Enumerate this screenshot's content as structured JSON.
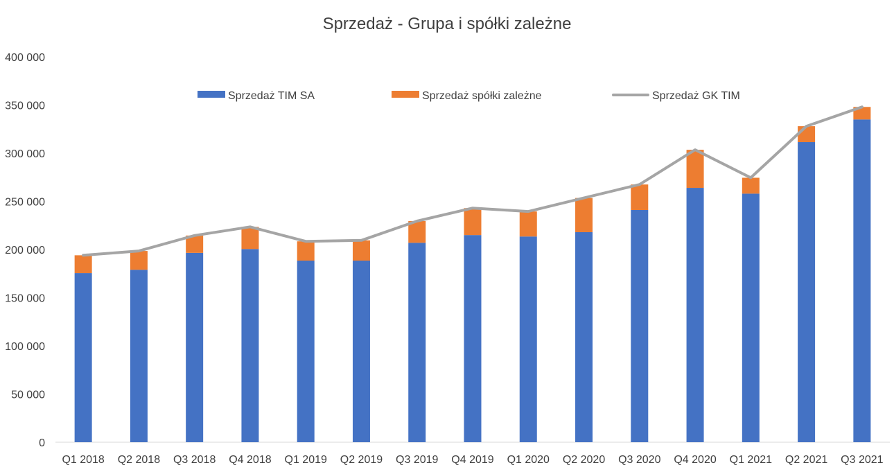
{
  "chart_data": {
    "type": "bar",
    "stacked": true,
    "title": "Sprzedaż - Grupa i spółki zależne",
    "xlabel": "",
    "ylabel": "",
    "ylim": [
      0,
      400000
    ],
    "y_ticks": [
      0,
      50000,
      100000,
      150000,
      200000,
      250000,
      300000,
      350000,
      400000
    ],
    "y_tick_labels": [
      "0",
      "50 000",
      "100 000",
      "150 000",
      "200 000",
      "250 000",
      "300 000",
      "350 000",
      "400 000"
    ],
    "grid": false,
    "legend_position": "top",
    "categories": [
      "Q1 2018",
      "Q2 2018",
      "Q3 2018",
      "Q4 2018",
      "Q1 2019",
      "Q2 2019",
      "Q3 2019",
      "Q4 2019",
      "Q1 2020",
      "Q2 2020",
      "Q3 2020",
      "Q4 2020",
      "Q1 2021",
      "Q2 2021",
      "Q3 2021"
    ],
    "series": [
      {
        "name": "Sprzedaż TIM SA",
        "type": "bar",
        "color": "#4472C4",
        "values": [
          175500,
          179000,
          196500,
          200500,
          188500,
          188500,
          207000,
          215000,
          213500,
          218000,
          241000,
          264000,
          258000,
          311500,
          335000
        ]
      },
      {
        "name": "Sprzedaż spółki zależne",
        "type": "bar",
        "color": "#ED7D31",
        "values": [
          18500,
          19500,
          18000,
          23000,
          20000,
          21000,
          22500,
          28000,
          26000,
          35500,
          26500,
          39500,
          16500,
          16500,
          13000
        ]
      },
      {
        "name": "Sprzedaż GK TIM",
        "type": "line",
        "color": "#A5A5A5",
        "values": [
          194000,
          198500,
          214500,
          223500,
          208500,
          209500,
          229500,
          243000,
          239500,
          253500,
          267500,
          303500,
          274500,
          328000,
          348000
        ]
      }
    ]
  }
}
